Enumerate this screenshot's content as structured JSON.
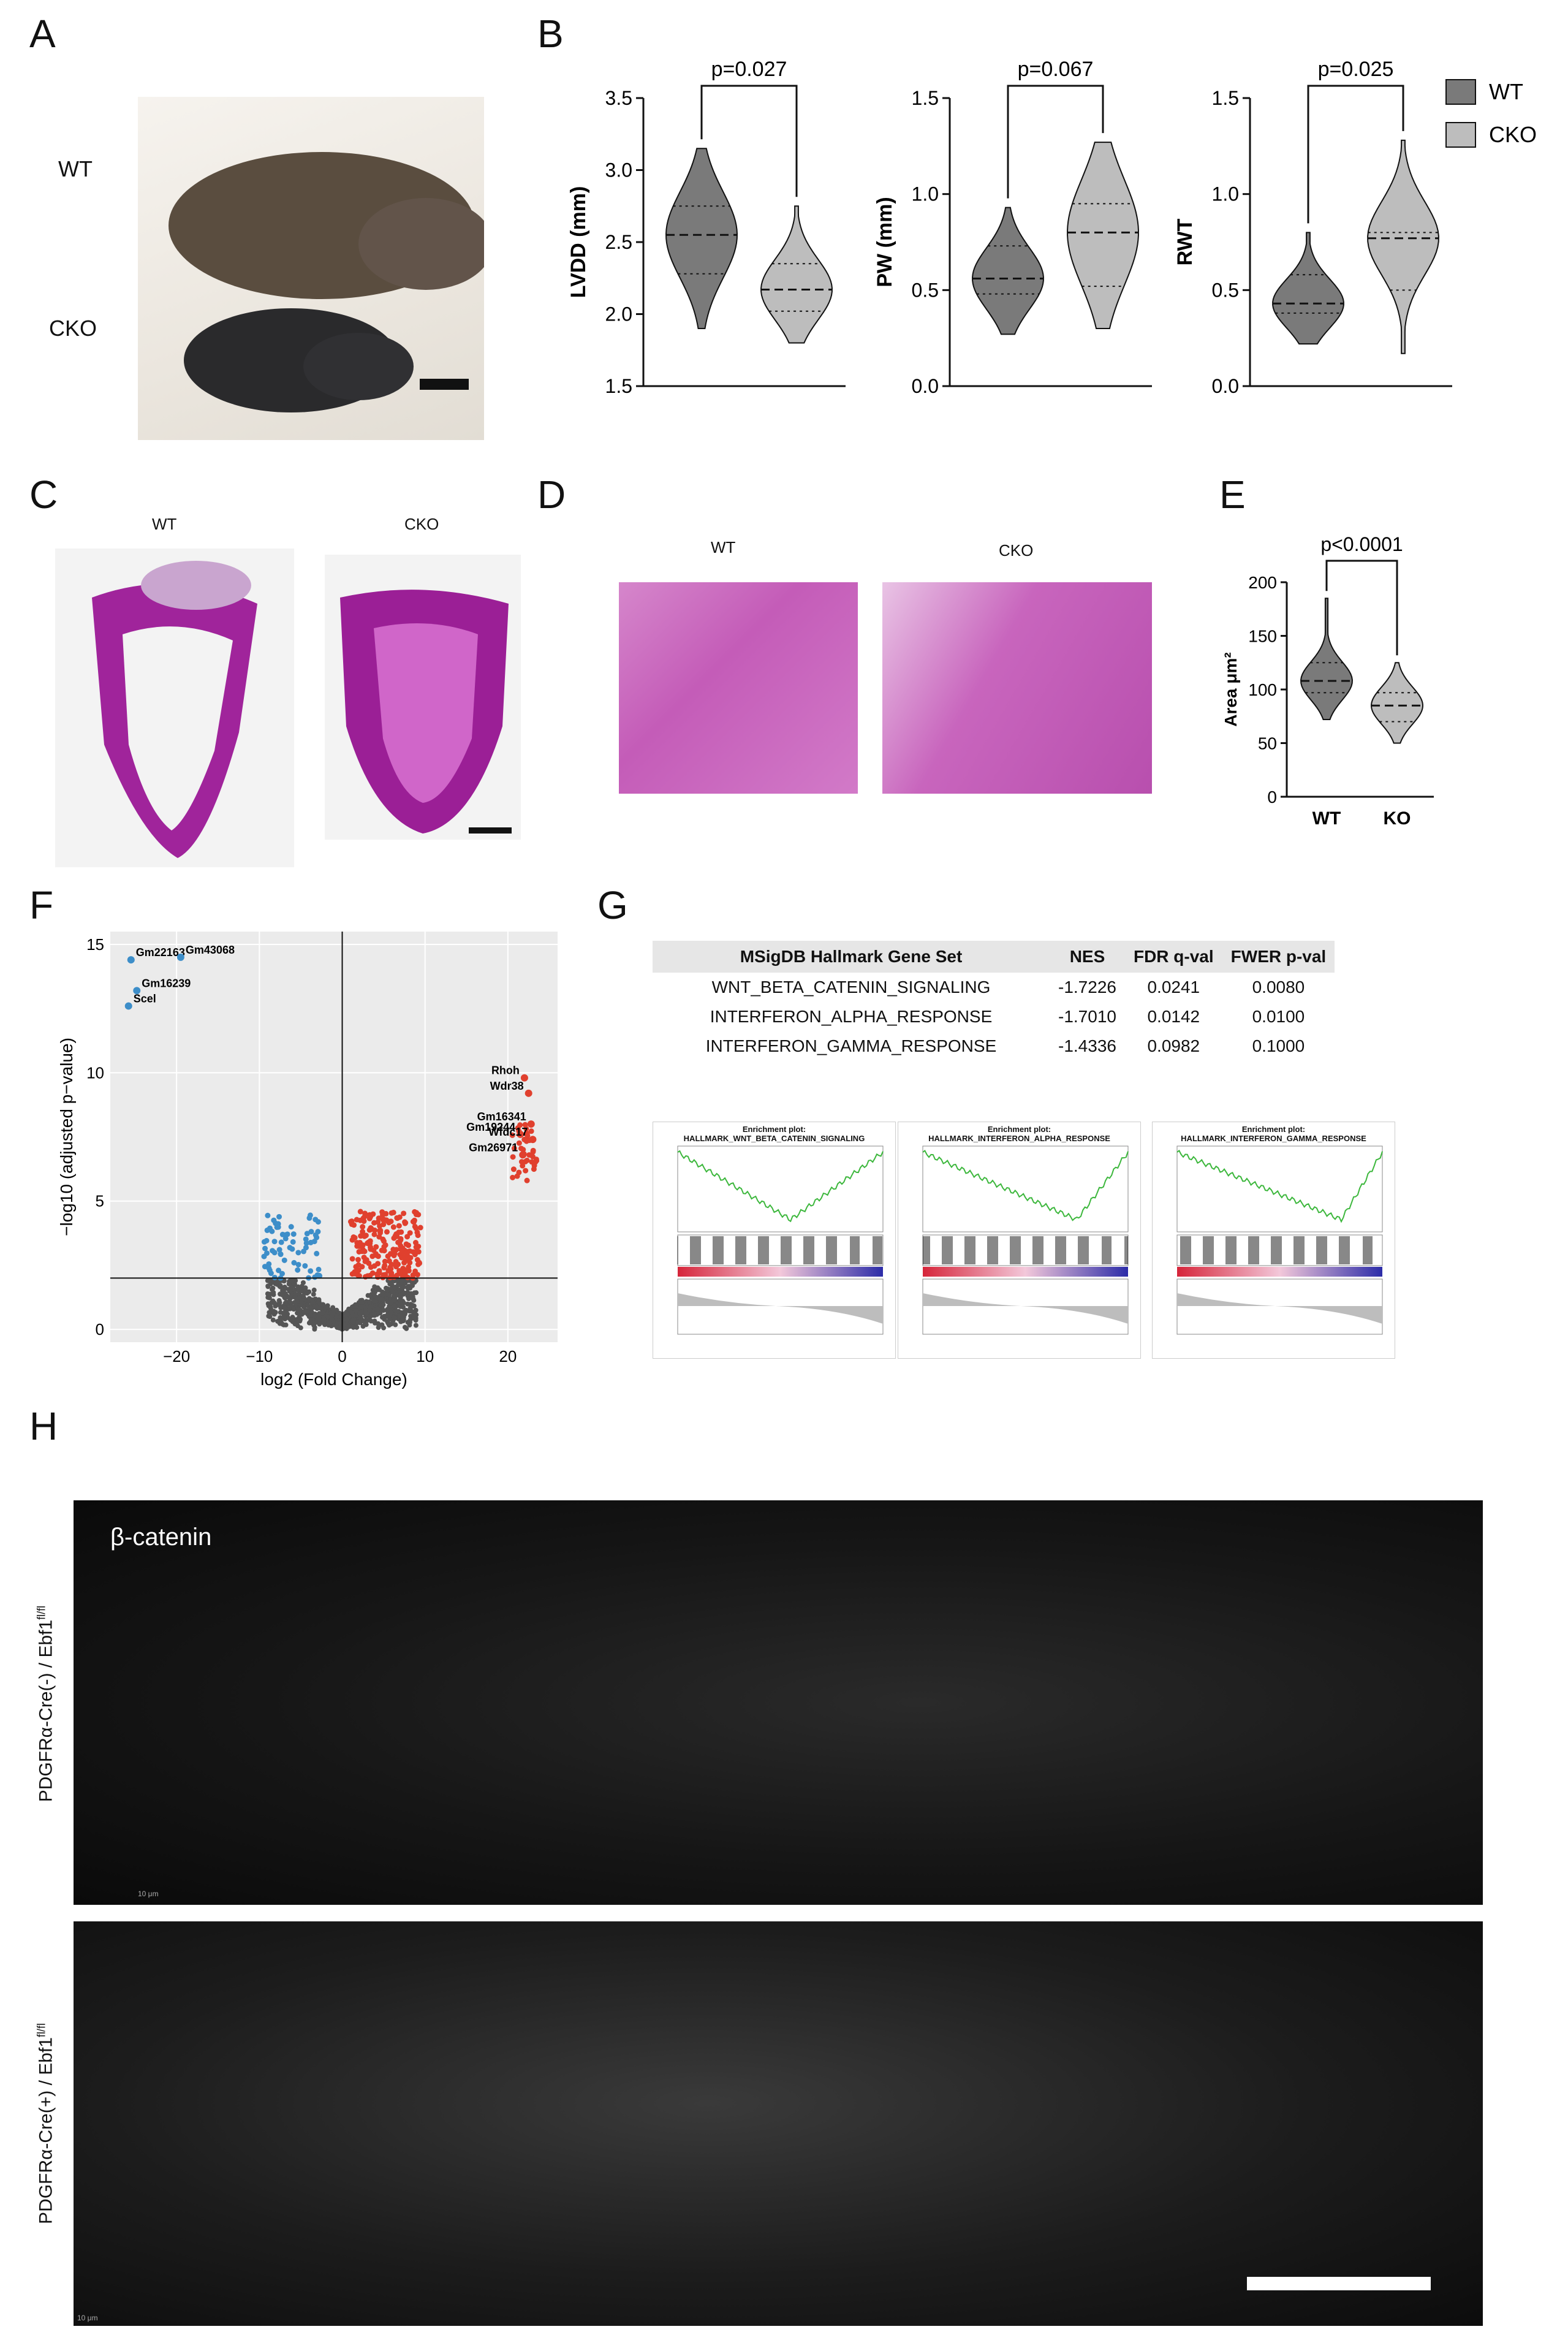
{
  "panels": {
    "A": "A",
    "B": "B",
    "C": "C",
    "D": "D",
    "E": "E",
    "F": "F",
    "G": "G",
    "H": "H"
  },
  "panel_a": {
    "wt_label": "WT",
    "cko_label": "CKO"
  },
  "panel_c": {
    "wt_label": "WT",
    "cko_label": "CKO"
  },
  "panel_d": {
    "wt_label": "WT",
    "cko_label": "CKO"
  },
  "legend_b": {
    "wt": "WT",
    "cko": "CKO",
    "colors": {
      "wt": "#7a7a7a",
      "cko": "#bdbdbd"
    }
  },
  "chart_data": [
    {
      "type": "violin",
      "panel": "B",
      "ylabel": "LVDD (mm)",
      "ylim": [
        1.5,
        3.5
      ],
      "yticks": [
        "1.5",
        "2.0",
        "2.5",
        "3.0",
        "3.5"
      ],
      "pvalue": "p=0.027",
      "series": [
        {
          "name": "WT",
          "min": 1.9,
          "q1": 2.28,
          "median": 2.55,
          "q3": 2.75,
          "max": 3.15
        },
        {
          "name": "CKO",
          "min": 1.8,
          "q1": 2.02,
          "median": 2.17,
          "q3": 2.35,
          "max": 2.75
        }
      ]
    },
    {
      "type": "violin",
      "panel": "B",
      "ylabel": "PW (mm)",
      "ylim": [
        0.0,
        1.5
      ],
      "yticks": [
        "0.0",
        "0.5",
        "1.0",
        "1.5"
      ],
      "pvalue": "p=0.067",
      "series": [
        {
          "name": "WT",
          "min": 0.27,
          "q1": 0.48,
          "median": 0.56,
          "q3": 0.73,
          "max": 0.93
        },
        {
          "name": "CKO",
          "min": 0.3,
          "q1": 0.52,
          "median": 0.8,
          "q3": 0.95,
          "max": 1.27
        }
      ]
    },
    {
      "type": "violin",
      "panel": "B",
      "ylabel": "RWT",
      "ylim": [
        0.0,
        1.5
      ],
      "yticks": [
        "0.0",
        "0.5",
        "1.0",
        "1.5"
      ],
      "pvalue": "p=0.025",
      "series": [
        {
          "name": "WT",
          "min": 0.22,
          "q1": 0.38,
          "median": 0.43,
          "q3": 0.58,
          "max": 0.8
        },
        {
          "name": "CKO",
          "min": 0.17,
          "q1": 0.5,
          "median": 0.77,
          "q3": 0.8,
          "max": 1.28
        }
      ]
    },
    {
      "type": "violin",
      "panel": "E",
      "ylabel": "Area μm²",
      "ylim": [
        0,
        200
      ],
      "yticks": [
        "0",
        "50",
        "100",
        "150",
        "200"
      ],
      "categories": [
        "WT",
        "KO"
      ],
      "pvalue": "p<0.0001",
      "series": [
        {
          "name": "WT",
          "min": 72,
          "q1": 97,
          "median": 108,
          "q3": 125,
          "max": 185
        },
        {
          "name": "KO",
          "min": 50,
          "q1": 70,
          "median": 85,
          "q3": 97,
          "max": 125
        }
      ]
    },
    {
      "type": "scatter",
      "panel": "F",
      "xlabel": "log2 (Fold Change)",
      "ylabel": "−log10 (adjusted p−value)",
      "xlim": [
        -28,
        26
      ],
      "ylim": [
        -0.5,
        15.5
      ],
      "xticks": [
        "−20",
        "−10",
        "0",
        "10",
        "20"
      ],
      "yticks": [
        "0",
        "5",
        "10",
        "15"
      ],
      "threshold_y": 2,
      "colors": {
        "up": "#e0402e",
        "down": "#3d8ec9",
        "ns": "#555555"
      },
      "labeled_points": [
        {
          "label": "Gm22163",
          "x": -25.5,
          "y": 14.4
        },
        {
          "label": "Gm43068",
          "x": -19.5,
          "y": 14.5
        },
        {
          "label": "Gm16239",
          "x": -24.8,
          "y": 13.2
        },
        {
          "label": "Scel",
          "x": -25.8,
          "y": 12.6
        },
        {
          "label": "Rhoh",
          "x": 22.0,
          "y": 9.8
        },
        {
          "label": "Wdr38",
          "x": 22.5,
          "y": 9.2
        },
        {
          "label": "Gm16341",
          "x": 22.8,
          "y": 8.0
        },
        {
          "label": "Gm19244",
          "x": 21.5,
          "y": 7.6
        },
        {
          "label": "Wfdc17",
          "x": 23.0,
          "y": 7.4
        },
        {
          "label": "Gm26971",
          "x": 21.8,
          "y": 6.8
        }
      ]
    },
    {
      "type": "table",
      "panel": "G",
      "columns": [
        "MSigDB Hallmark Gene Set",
        "NES",
        "FDR q-val",
        "FWER p-val"
      ],
      "rows": [
        [
          "WNT_BETA_CATENIN_SIGNALING",
          "-1.7226",
          "0.0241",
          "0.0080"
        ],
        [
          "INTERFERON_ALPHA_RESPONSE",
          "-1.7010",
          "0.0142",
          "0.0100"
        ],
        [
          "INTERFERON_GAMMA_RESPONSE",
          "-1.4336",
          "0.0982",
          "0.1000"
        ]
      ]
    }
  ],
  "gsea_plots": [
    {
      "title1": "Enrichment plot:",
      "title2": "HALLMARK_WNT_BETA_CATENIN_SIGNALING"
    },
    {
      "title1": "Enrichment plot:",
      "title2": "HALLMARK_INTERFERON_ALPHA_RESPONSE"
    },
    {
      "title1": "Enrichment plot:",
      "title2": "HALLMARK_INTERFERON_GAMMA_RESPONSE"
    }
  ],
  "panel_h": {
    "stain_label": "β-catenin",
    "top_row_label": "PDGFRα-Cre(-) / Ebf1",
    "bottom_row_label": "PDGFRα-Cre(+) / Ebf1",
    "superscript": "fl/fl",
    "scale_label": "10 μm"
  }
}
